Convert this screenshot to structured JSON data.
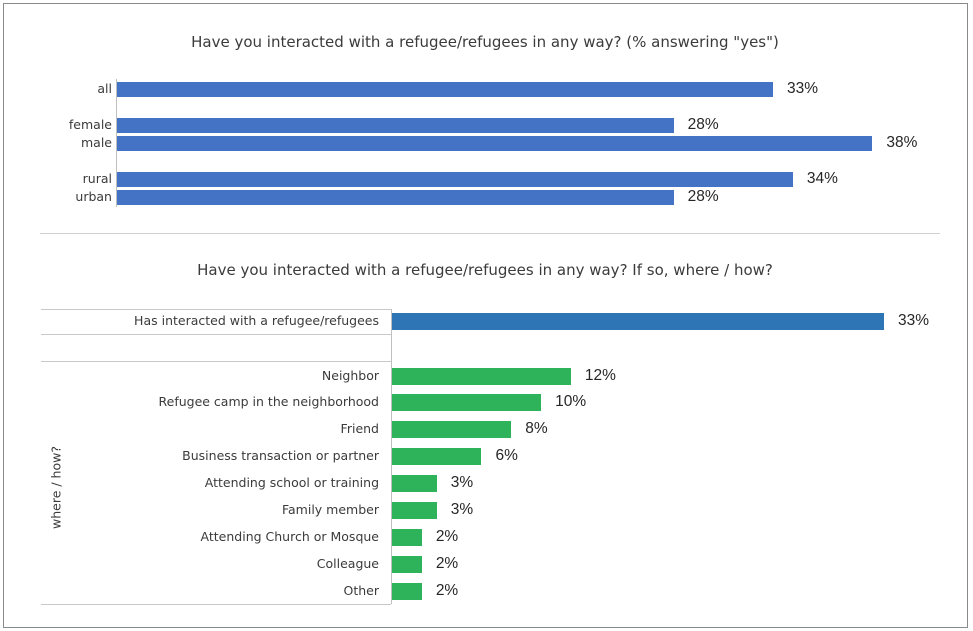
{
  "chart_data": [
    {
      "type": "bar",
      "orientation": "horizontal",
      "title": "Have you interacted with a refugee/refugees in any way? (% answering \"yes\")",
      "categories": [
        "all",
        "female",
        "male",
        "rural",
        "urban"
      ],
      "values": [
        33,
        28,
        38,
        34,
        28
      ],
      "value_labels": [
        "33%",
        "28%",
        "38%",
        "34%",
        "28%"
      ],
      "unit": "%",
      "color": "#4472c4",
      "xlim": [
        0,
        40
      ]
    },
    {
      "type": "bar",
      "orientation": "horizontal",
      "title": "Have you interacted with a refugee/refugees in any way? If so, where / how?",
      "group_label": "where / how?",
      "categories": [
        "Has interacted with a refugee/refugees",
        "Neighbor",
        "Refugee camp in the neighborhood",
        "Friend",
        "Business transaction or partner",
        "Attending school or training",
        "Family member",
        "Attending Church or Mosque",
        "Colleague",
        "Other"
      ],
      "values": [
        33,
        12,
        10,
        8,
        6,
        3,
        3,
        2,
        2,
        2
      ],
      "value_labels": [
        "33%",
        "12%",
        "10%",
        "8%",
        "6%",
        "3%",
        "3%",
        "2%",
        "2%",
        "2%"
      ],
      "unit": "%",
      "colors": {
        "total": "#2e75b6",
        "detail": "#2eb35a"
      },
      "xlim": [
        0,
        40
      ]
    }
  ]
}
